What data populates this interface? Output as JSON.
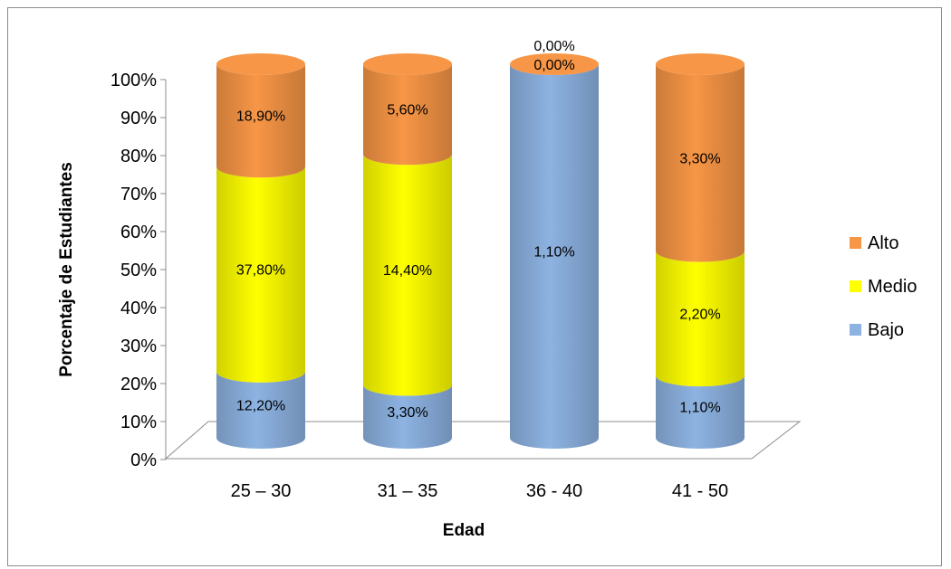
{
  "chart_data": {
    "type": "bar",
    "subtype": "stacked-100-cylinder-3d",
    "title": "",
    "xlabel": "Edad",
    "ylabel": "Porcentaje de Estudiantes",
    "ylim": [
      0,
      100
    ],
    "y_ticks": [
      "0%",
      "10%",
      "20%",
      "30%",
      "40%",
      "50%",
      "60%",
      "70%",
      "80%",
      "90%",
      "100%"
    ],
    "categories": [
      "25 – 30",
      "31 – 35",
      "36 - 40",
      "41 - 50"
    ],
    "series": [
      {
        "name": "Bajo",
        "color": "#8db3e2",
        "values": [
          12.2,
          3.3,
          1.1,
          1.1
        ],
        "labels": [
          "12,20%",
          "3,30%",
          "1,10%",
          "1,10%"
        ]
      },
      {
        "name": "Medio",
        "color": "#ffff00",
        "values": [
          37.8,
          14.4,
          0.0,
          2.2
        ],
        "labels": [
          "37,80%",
          "14,40%",
          "0,00%",
          "2,20%"
        ]
      },
      {
        "name": "Alto",
        "color": "#f79646",
        "values": [
          18.9,
          5.6,
          0.0,
          3.3
        ],
        "labels": [
          "18,90%",
          "5,60%",
          "0,00%",
          "3,30%"
        ]
      }
    ],
    "legend_order": [
      "Alto",
      "Medio",
      "Bajo"
    ],
    "legend_position": "right",
    "grid": false
  }
}
